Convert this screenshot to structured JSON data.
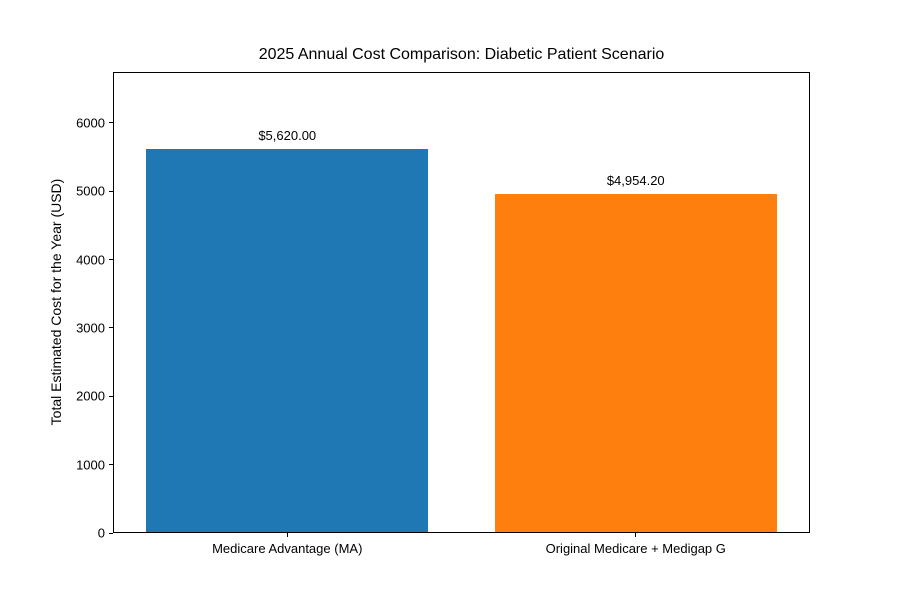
{
  "chart_data": {
    "type": "bar",
    "title": "2025 Annual Cost Comparison: Diabetic Patient Scenario",
    "xlabel": "",
    "ylabel": "Total Estimated Cost for the Year (USD)",
    "categories": [
      "Medicare Advantage (MA)",
      "Original Medicare + Medigap G"
    ],
    "values": [
      5620.0,
      4954.2
    ],
    "value_labels": [
      "$5,620.00",
      "$4,954.20"
    ],
    "bar_colors": [
      "#1f77b4",
      "#ff7f0e"
    ],
    "yticks": [
      0,
      1000,
      2000,
      3000,
      4000,
      5000,
      6000
    ],
    "ytick_labels": [
      "0",
      "1000",
      "2000",
      "3000",
      "4000",
      "5000",
      "6000"
    ],
    "ylim": [
      0,
      6744
    ],
    "grid": false,
    "legend": "none",
    "background_color": "#ffffff",
    "text_color": "#000000"
  }
}
